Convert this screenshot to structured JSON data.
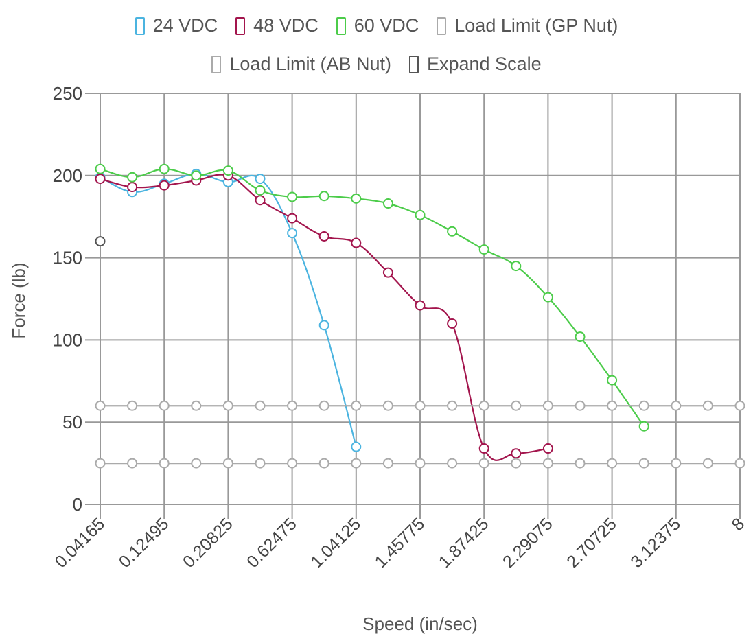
{
  "legend": {
    "row1": [
      {
        "label": "24 VDC",
        "color": "#4bb4e0"
      },
      {
        "label": "48 VDC",
        "color": "#a3154d"
      },
      {
        "label": "60 VDC",
        "color": "#4ccc4a"
      },
      {
        "label": "Load Limit (GP Nut)",
        "color": "#aaaaaa"
      }
    ],
    "row2": [
      {
        "label": "Load Limit (AB Nut)",
        "color": "#aaaaaa"
      },
      {
        "label": "Expand Scale",
        "color": "#555555"
      }
    ]
  },
  "chart_data": {
    "type": "line",
    "xlabel": "Speed (in/sec)",
    "ylabel": "Force (lb)",
    "ylim": [
      0,
      250
    ],
    "yticks": [
      0,
      50,
      100,
      150,
      200,
      250
    ],
    "x_tick_labels": [
      "0.04165",
      "0.12495",
      "0.20825",
      "0.62475",
      "1.04125",
      "1.45775",
      "1.87425",
      "2.29075",
      "2.70725",
      "3.12375",
      "8"
    ],
    "grid": true,
    "legend_position": "top",
    "series": [
      {
        "name": "24 VDC",
        "color": "#4bb4e0",
        "x": [
          0,
          1,
          2,
          3,
          4,
          5,
          6,
          7,
          8
        ],
        "y": [
          199,
          190,
          195,
          201,
          196,
          198,
          165,
          109,
          35
        ]
      },
      {
        "name": "48 VDC",
        "color": "#a3154d",
        "x": [
          0,
          1,
          2,
          3,
          4,
          5,
          6,
          7,
          8,
          9,
          10,
          11,
          12,
          13,
          14
        ],
        "y": [
          198,
          193,
          194,
          197,
          200,
          185,
          174,
          163,
          159,
          141,
          121,
          110,
          34,
          31,
          34
        ]
      },
      {
        "name": "60 VDC",
        "color": "#4ccc4a",
        "x": [
          0,
          1,
          2,
          3,
          4,
          5,
          6,
          7,
          8,
          9,
          10,
          11,
          12,
          13,
          14,
          15,
          16,
          17
        ],
        "y": [
          204,
          199,
          204,
          200,
          203,
          191,
          187,
          187.5,
          186,
          183,
          176,
          166,
          155,
          145,
          126,
          102,
          75.5,
          47.5
        ]
      },
      {
        "name": "Load Limit (GP Nut)",
        "color": "#aaaaaa",
        "x": [
          0,
          1,
          2,
          3,
          4,
          5,
          6,
          7,
          8,
          9,
          10,
          11,
          12,
          13,
          14,
          15,
          16,
          17,
          18,
          19,
          20
        ],
        "y": [
          60,
          60,
          60,
          60,
          60,
          60,
          60,
          60,
          60,
          60,
          60,
          60,
          60,
          60,
          60,
          60,
          60,
          60,
          60,
          60,
          60
        ]
      },
      {
        "name": "Load Limit (AB Nut)",
        "color": "#aaaaaa",
        "x": [
          0,
          1,
          2,
          3,
          4,
          5,
          6,
          7,
          8,
          9,
          10,
          11,
          12,
          13,
          14,
          15,
          16,
          17,
          18,
          19,
          20
        ],
        "y": [
          25,
          25,
          25,
          25,
          25,
          25,
          25,
          25,
          25,
          25,
          25,
          25,
          25,
          25,
          25,
          25,
          25,
          25,
          25,
          25,
          25
        ]
      },
      {
        "name": "Expand Scale",
        "color": "#555555",
        "x": [
          0
        ],
        "y": [
          160
        ]
      }
    ]
  }
}
